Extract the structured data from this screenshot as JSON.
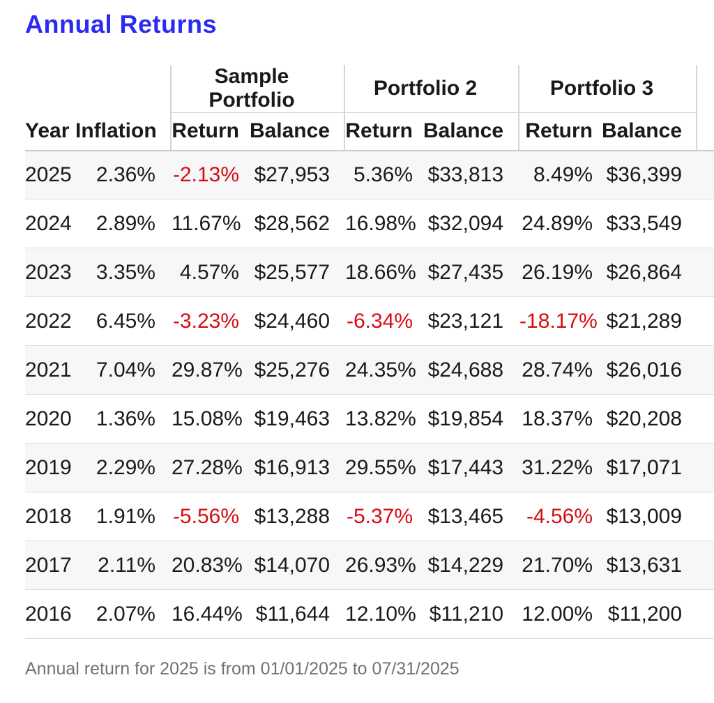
{
  "page": {
    "title": "Annual Returns",
    "footnote": "Annual return for 2025 is from 01/01/2025 to 07/31/2025"
  },
  "colors": {
    "accent": "#2a2af2",
    "negative": "#d60b12",
    "text": "#1a1a1a",
    "muted": "#6f7276",
    "stripe": "#f7f7f8",
    "row-border": "#dddddd",
    "header-border": "#c9c9c9",
    "divider": "#d5d5d5"
  },
  "table": {
    "groups": [
      {
        "label": "Sample Portfolio"
      },
      {
        "label": "Portfolio 2"
      },
      {
        "label": "Portfolio 3"
      }
    ],
    "columns": {
      "year": "Year",
      "inflation": "Inflation",
      "return": "Return",
      "balance": "Balance"
    },
    "rows": [
      [
        "2025",
        "2.36%",
        "-2.13%",
        "$27,953",
        "5.36%",
        "$33,813",
        "8.49%",
        "$36,399"
      ],
      [
        "2024",
        "2.89%",
        "11.67%",
        "$28,562",
        "16.98%",
        "$32,094",
        "24.89%",
        "$33,549"
      ],
      [
        "2023",
        "3.35%",
        "4.57%",
        "$25,577",
        "18.66%",
        "$27,435",
        "26.19%",
        "$26,864"
      ],
      [
        "2022",
        "6.45%",
        "-3.23%",
        "$24,460",
        "-6.34%",
        "$23,121",
        "-18.17%",
        "$21,289"
      ],
      [
        "2021",
        "7.04%",
        "29.87%",
        "$25,276",
        "24.35%",
        "$24,688",
        "28.74%",
        "$26,016"
      ],
      [
        "2020",
        "1.36%",
        "15.08%",
        "$19,463",
        "13.82%",
        "$19,854",
        "18.37%",
        "$20,208"
      ],
      [
        "2019",
        "2.29%",
        "27.28%",
        "$16,913",
        "29.55%",
        "$17,443",
        "31.22%",
        "$17,071"
      ],
      [
        "2018",
        "1.91%",
        "-5.56%",
        "$13,288",
        "-5.37%",
        "$13,465",
        "-4.56%",
        "$13,009"
      ],
      [
        "2017",
        "2.11%",
        "20.83%",
        "$14,070",
        "26.93%",
        "$14,229",
        "21.70%",
        "$13,631"
      ],
      [
        "2016",
        "2.07%",
        "16.44%",
        "$11,644",
        "12.10%",
        "$11,210",
        "12.00%",
        "$11,200"
      ]
    ]
  }
}
